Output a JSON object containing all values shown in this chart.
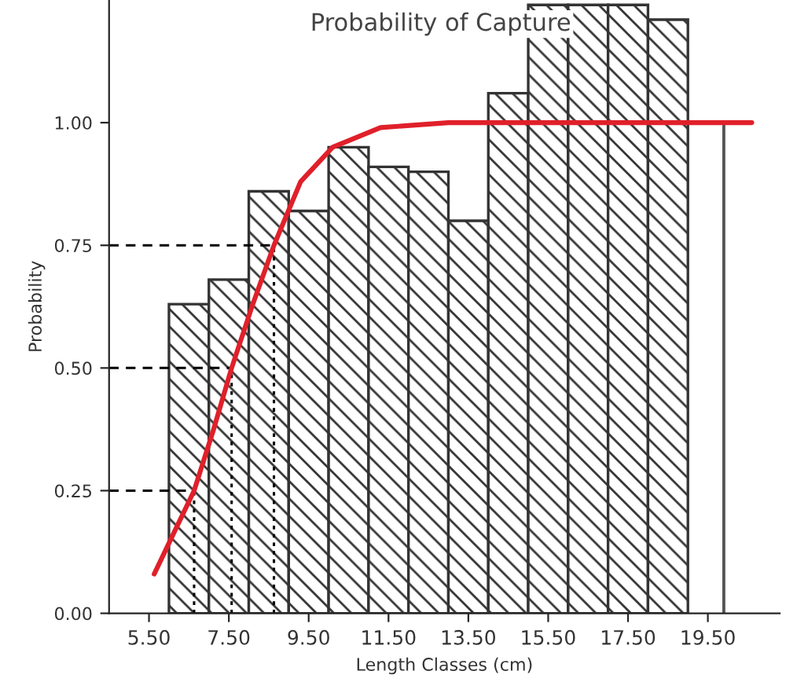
{
  "chart_data": {
    "type": "histogram",
    "title": "Probability of Capture",
    "xlabel": "Length Classes (cm)",
    "ylabel": "Probability",
    "bins": [
      6,
      7,
      8,
      9,
      10,
      11,
      12,
      13,
      14,
      15,
      16,
      17,
      18,
      19
    ],
    "values": [
      0.63,
      0.68,
      0.86,
      0.82,
      0.95,
      0.91,
      0.9,
      0.8,
      1.06,
      1.24,
      1.24,
      1.24,
      1.21
    ],
    "color": "#333333",
    "series": [
      {
        "type": "line",
        "color": "#e0202a",
        "line_style": "solid",
        "x": [
          5.63,
          6.1,
          6.63,
          7.1,
          7.57,
          8.1,
          8.63,
          9.3,
          10.1,
          11.3,
          13,
          20.6
        ],
        "values": [
          0.08,
          0.16,
          0.25,
          0.37,
          0.5,
          0.63,
          0.75,
          0.88,
          0.95,
          0.99,
          1.0,
          1.0
        ]
      },
      {
        "type": "line",
        "color": "#000000",
        "line_style": "dashed",
        "x": [
          4.5,
          6.63
        ],
        "values": [
          0.25,
          0.25
        ]
      },
      {
        "type": "line",
        "color": "#000000",
        "line_style": "dashed",
        "x": [
          4.5,
          7.57
        ],
        "values": [
          0.5,
          0.5
        ]
      },
      {
        "type": "line",
        "color": "#000000",
        "line_style": "dashed",
        "x": [
          4.5,
          8.63
        ],
        "values": [
          0.75,
          0.75
        ]
      },
      {
        "type": "line",
        "color": "#000000",
        "line_style": "dotted",
        "x": [
          6.63,
          6.63
        ],
        "values": [
          0,
          0.25
        ]
      },
      {
        "type": "line",
        "color": "#000000",
        "line_style": "dotted",
        "x": [
          7.57,
          7.57
        ],
        "values": [
          0,
          0.5
        ]
      },
      {
        "type": "line",
        "color": "#000000",
        "line_style": "dotted",
        "x": [
          8.63,
          8.63
        ],
        "values": [
          0,
          0.75
        ]
      }
    ],
    "ref_lines": [
      {
        "axis": "x",
        "value": 19.9,
        "color": "#555555",
        "line_style": "solid"
      }
    ],
    "xlim": [
      4.5,
      21.3
    ],
    "ylim": [
      0,
      1.25
    ],
    "xticks": [
      {
        "value": 5.5,
        "label": "5.50"
      },
      {
        "value": 7.5,
        "label": "7.50"
      },
      {
        "value": 9.5,
        "label": "9.50"
      },
      {
        "value": 11.5,
        "label": "11.50"
      },
      {
        "value": 13.5,
        "label": "13.50"
      },
      {
        "value": 15.5,
        "label": "15.50"
      },
      {
        "value": 17.5,
        "label": "17.50"
      },
      {
        "value": 19.5,
        "label": "19.50"
      }
    ],
    "yticks": [
      {
        "value": 0,
        "label": "0.00"
      },
      {
        "value": 0.25,
        "label": "0.25"
      },
      {
        "value": 0.5,
        "label": "0.50"
      },
      {
        "value": 0.75,
        "label": "0.75"
      },
      {
        "value": 1.0,
        "label": "1.00"
      }
    ],
    "grid": false,
    "legend": false
  }
}
